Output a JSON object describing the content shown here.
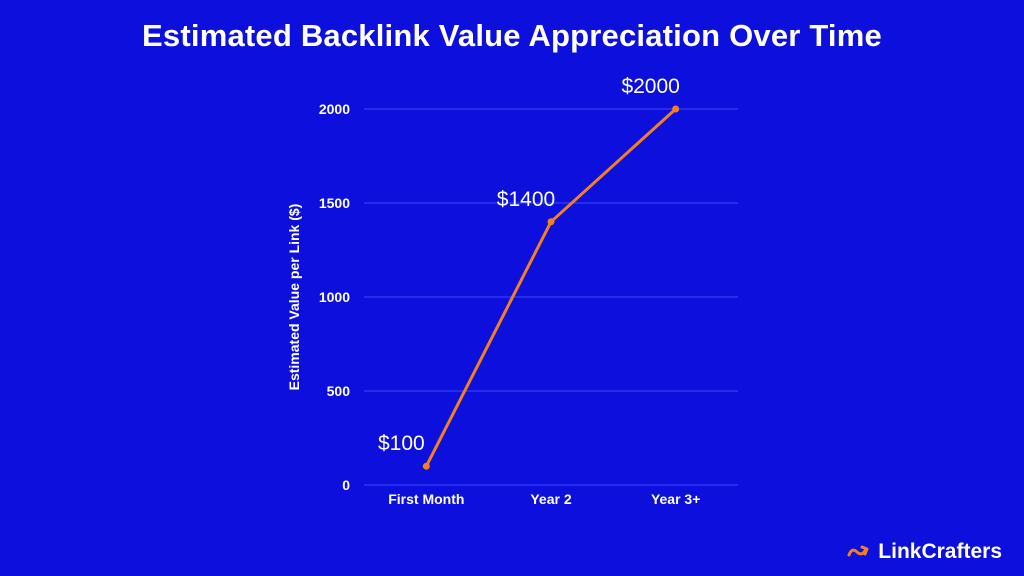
{
  "chart_data": {
    "type": "line",
    "title": "Estimated Backlink Value Appreciation Over Time",
    "ylabel": "Estimated Value per Link ($)",
    "xlabel": "",
    "categories": [
      "First Month",
      "Year 2",
      "Year 3+"
    ],
    "series": [
      {
        "values": [
          100,
          1400,
          2000
        ],
        "labels": [
          "$100",
          "$1400",
          "$2000"
        ],
        "color": "#f47f20"
      }
    ],
    "ylim": [
      0,
      2000
    ],
    "yticks": [
      "0",
      "500",
      "1000",
      "1500",
      "2000"
    ],
    "grid": true
  },
  "brand": {
    "name": "LinkCrafters",
    "accent": "#f47f20"
  },
  "colors": {
    "background": "#0d0fdc",
    "grid": "#3b4bff"
  }
}
